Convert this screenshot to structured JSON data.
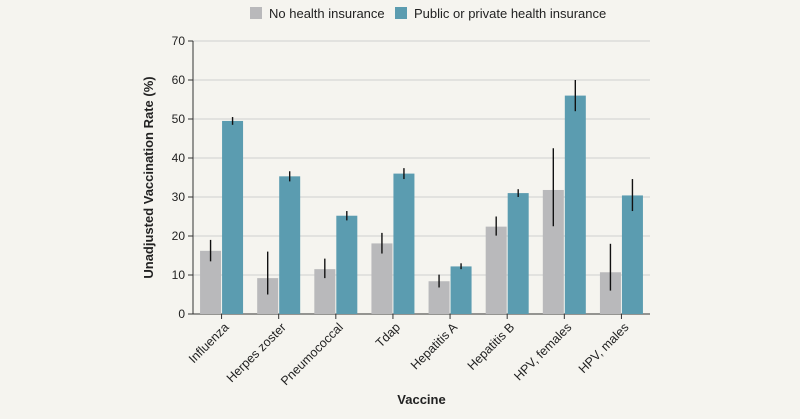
{
  "chart_data": {
    "type": "bar",
    "xlabel": "Vaccine",
    "ylabel": "Unadjusted Vaccination Rate (%)",
    "ylim": [
      0,
      70
    ],
    "yticks": [
      0,
      10,
      20,
      30,
      40,
      50,
      60,
      70
    ],
    "grid": true,
    "legend_position": "top",
    "categories": [
      "Influenza",
      "Herpes zoster",
      "Pneumococcal",
      "Tdap",
      "Hepatitis A",
      "Hepatitis B",
      "HPV, females",
      "HPV, males"
    ],
    "series": [
      {
        "name": "No health insurance",
        "color": "#b9b9bb",
        "values": [
          16.2,
          9.2,
          11.5,
          18.1,
          8.4,
          22.4,
          31.8,
          10.7
        ],
        "ci_low": [
          13.5,
          5.0,
          9.2,
          15.5,
          6.8,
          20.1,
          22.5,
          6.0
        ],
        "ci_high": [
          19.0,
          16.0,
          14.2,
          20.8,
          10.1,
          25.0,
          42.5,
          18.0
        ]
      },
      {
        "name": "Public or private health insurance",
        "color": "#5b9cb0",
        "values": [
          49.5,
          35.3,
          25.2,
          36.0,
          12.2,
          31.0,
          56.0,
          30.4
        ],
        "ci_low": [
          48.5,
          34.0,
          24.0,
          34.6,
          11.5,
          30.0,
          52.0,
          26.4
        ],
        "ci_high": [
          50.5,
          36.6,
          26.4,
          37.4,
          13.0,
          32.0,
          60.0,
          34.6
        ]
      }
    ]
  }
}
